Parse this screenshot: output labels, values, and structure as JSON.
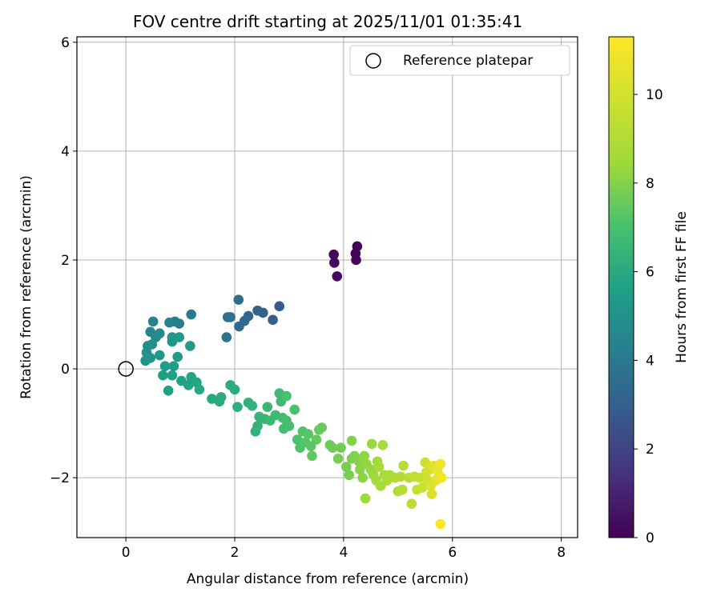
{
  "chart_data": {
    "type": "scatter",
    "title": "FOV centre drift starting at 2025/11/01 01:35:41",
    "xlabel": "Angular distance from reference (arcmin)",
    "ylabel": "Rotation from reference (arcmin)",
    "xlim": [
      -0.9,
      8.3
    ],
    "ylim": [
      -3.1,
      6.1
    ],
    "xticks": [
      0,
      2,
      4,
      6,
      8
    ],
    "yticks": [
      -2,
      0,
      2,
      4,
      6
    ],
    "ytick_labels": [
      "−2",
      "0",
      "2",
      "4",
      "6"
    ],
    "grid": true,
    "legend": {
      "location": "upper right",
      "entries": [
        "Reference platepar"
      ]
    },
    "reference_point": {
      "x": 0,
      "y": 0,
      "label": "Reference platepar"
    },
    "colorbar": {
      "label": "Hours from first FF file",
      "range": [
        0,
        11.3
      ],
      "ticks": [
        0,
        2,
        4,
        6,
        8,
        10
      ],
      "colormap": "viridis"
    },
    "series": [
      {
        "name": "FOV centre",
        "points": [
          [
            4.25,
            2.25,
            0.05
          ],
          [
            4.22,
            2.12,
            0.1
          ],
          [
            4.23,
            2.0,
            0.15
          ],
          [
            3.82,
            2.1,
            0.2
          ],
          [
            3.83,
            1.95,
            0.25
          ],
          [
            3.88,
            1.7,
            0.3
          ],
          [
            2.82,
            1.15,
            2.8
          ],
          [
            2.7,
            0.9,
            2.9
          ],
          [
            2.52,
            1.03,
            3.0
          ],
          [
            2.42,
            1.07,
            3.1
          ],
          [
            2.25,
            0.97,
            3.2
          ],
          [
            2.18,
            0.88,
            3.3
          ],
          [
            2.08,
            0.78,
            3.4
          ],
          [
            2.07,
            1.27,
            3.5
          ],
          [
            1.92,
            0.95,
            3.6
          ],
          [
            1.87,
            0.95,
            3.7
          ],
          [
            1.85,
            0.58,
            3.8
          ],
          [
            1.2,
            1.0,
            4.0
          ],
          [
            0.98,
            0.83,
            4.1
          ],
          [
            0.9,
            0.87,
            4.2
          ],
          [
            0.8,
            0.85,
            4.3
          ],
          [
            0.5,
            0.87,
            4.4
          ],
          [
            0.45,
            0.68,
            4.5
          ],
          [
            0.62,
            0.65,
            4.6
          ],
          [
            0.55,
            0.58,
            4.7
          ],
          [
            0.4,
            0.42,
            4.8
          ],
          [
            0.48,
            0.45,
            4.9
          ],
          [
            0.38,
            0.3,
            5.0
          ],
          [
            0.36,
            0.15,
            5.05
          ],
          [
            0.45,
            0.2,
            5.1
          ],
          [
            0.62,
            0.25,
            5.15
          ],
          [
            0.85,
            0.5,
            5.2
          ],
          [
            0.85,
            0.58,
            5.25
          ],
          [
            0.98,
            0.58,
            5.3
          ],
          [
            1.18,
            0.42,
            5.35
          ],
          [
            0.95,
            0.22,
            5.4
          ],
          [
            0.72,
            0.05,
            5.45
          ],
          [
            0.88,
            0.05,
            5.5
          ],
          [
            0.68,
            -0.12,
            5.55
          ],
          [
            0.85,
            -0.12,
            5.6
          ],
          [
            0.78,
            -0.4,
            5.65
          ],
          [
            1.02,
            -0.22,
            5.7
          ],
          [
            1.15,
            -0.3,
            5.75
          ],
          [
            1.2,
            -0.15,
            5.8
          ],
          [
            1.3,
            -0.25,
            5.85
          ],
          [
            1.35,
            -0.38,
            5.9
          ],
          [
            1.58,
            -0.55,
            5.95
          ],
          [
            1.72,
            -0.6,
            6.0
          ],
          [
            1.75,
            -0.52,
            6.05
          ],
          [
            1.92,
            -0.3,
            6.1
          ],
          [
            2.0,
            -0.38,
            6.15
          ],
          [
            2.05,
            -0.7,
            6.2
          ],
          [
            2.25,
            -0.62,
            6.25
          ],
          [
            2.32,
            -0.68,
            6.3
          ],
          [
            2.38,
            -1.15,
            6.35
          ],
          [
            2.42,
            -1.05,
            6.4
          ],
          [
            2.45,
            -0.88,
            6.45
          ],
          [
            2.55,
            -0.92,
            6.5
          ],
          [
            2.6,
            -0.7,
            6.55
          ],
          [
            2.65,
            -0.95,
            6.6
          ],
          [
            2.75,
            -0.85,
            6.65
          ],
          [
            2.82,
            -0.45,
            6.7
          ],
          [
            2.85,
            -0.6,
            6.75
          ],
          [
            2.88,
            -0.9,
            6.8
          ],
          [
            2.9,
            -1.1,
            6.85
          ],
          [
            2.95,
            -0.95,
            6.9
          ],
          [
            3.0,
            -1.05,
            6.95
          ],
          [
            2.95,
            -0.5,
            7.0
          ],
          [
            3.1,
            -0.75,
            7.05
          ],
          [
            3.15,
            -1.3,
            7.1
          ],
          [
            3.2,
            -1.45,
            7.15
          ],
          [
            3.25,
            -1.15,
            7.2
          ],
          [
            3.3,
            -1.35,
            7.25
          ],
          [
            3.35,
            -1.2,
            7.3
          ],
          [
            3.4,
            -1.42,
            7.35
          ],
          [
            3.42,
            -1.6,
            7.4
          ],
          [
            3.5,
            -1.3,
            7.45
          ],
          [
            3.55,
            -1.12,
            7.5
          ],
          [
            3.6,
            -1.08,
            7.55
          ],
          [
            3.75,
            -1.4,
            7.6
          ],
          [
            3.8,
            -1.45,
            7.65
          ],
          [
            3.95,
            -1.45,
            7.7
          ],
          [
            3.9,
            -1.65,
            7.75
          ],
          [
            4.05,
            -1.8,
            7.8
          ],
          [
            4.1,
            -1.95,
            7.85
          ],
          [
            4.15,
            -1.65,
            7.9
          ],
          [
            4.2,
            -1.6,
            7.95
          ],
          [
            4.15,
            -1.32,
            8.0
          ],
          [
            4.28,
            -1.7,
            8.05
          ],
          [
            4.3,
            -1.85,
            8.1
          ],
          [
            4.35,
            -2.0,
            8.15
          ],
          [
            4.38,
            -1.6,
            8.2
          ],
          [
            4.42,
            -1.75,
            8.25
          ],
          [
            4.5,
            -1.85,
            8.3
          ],
          [
            4.52,
            -1.38,
            8.35
          ],
          [
            4.55,
            -1.95,
            8.4
          ],
          [
            4.4,
            -2.38,
            8.45
          ],
          [
            4.6,
            -2.05,
            8.5
          ],
          [
            4.62,
            -1.7,
            8.55
          ],
          [
            4.65,
            -1.8,
            8.6
          ],
          [
            4.68,
            -2.15,
            8.65
          ],
          [
            4.72,
            -1.4,
            8.7
          ],
          [
            4.75,
            -1.95,
            8.75
          ],
          [
            4.8,
            -2.05,
            8.8
          ],
          [
            4.85,
            -1.95,
            8.85
          ],
          [
            4.95,
            -2.0,
            8.9
          ],
          [
            5.0,
            -2.25,
            8.95
          ],
          [
            5.05,
            -1.98,
            9.0
          ],
          [
            5.08,
            -2.22,
            9.05
          ],
          [
            5.1,
            -1.78,
            9.1
          ],
          [
            5.2,
            -2.0,
            9.2
          ],
          [
            5.25,
            -2.48,
            9.3
          ],
          [
            5.3,
            -1.98,
            9.4
          ],
          [
            5.35,
            -2.22,
            9.5
          ],
          [
            5.4,
            -2.0,
            9.6
          ],
          [
            5.45,
            -2.18,
            9.7
          ],
          [
            5.5,
            -1.72,
            9.8
          ],
          [
            5.52,
            -1.9,
            9.9
          ],
          [
            5.55,
            -2.05,
            10.0
          ],
          [
            5.58,
            -1.85,
            10.1
          ],
          [
            5.6,
            -2.15,
            10.2
          ],
          [
            5.62,
            -2.3,
            10.3
          ],
          [
            5.65,
            -1.78,
            10.4
          ],
          [
            5.7,
            -2.05,
            10.5
          ],
          [
            5.72,
            -1.85,
            10.6
          ],
          [
            5.75,
            -1.95,
            10.7
          ],
          [
            5.78,
            -1.75,
            10.8
          ],
          [
            5.8,
            -2.0,
            10.9
          ],
          [
            5.78,
            -2.85,
            11.3
          ]
        ]
      }
    ]
  }
}
